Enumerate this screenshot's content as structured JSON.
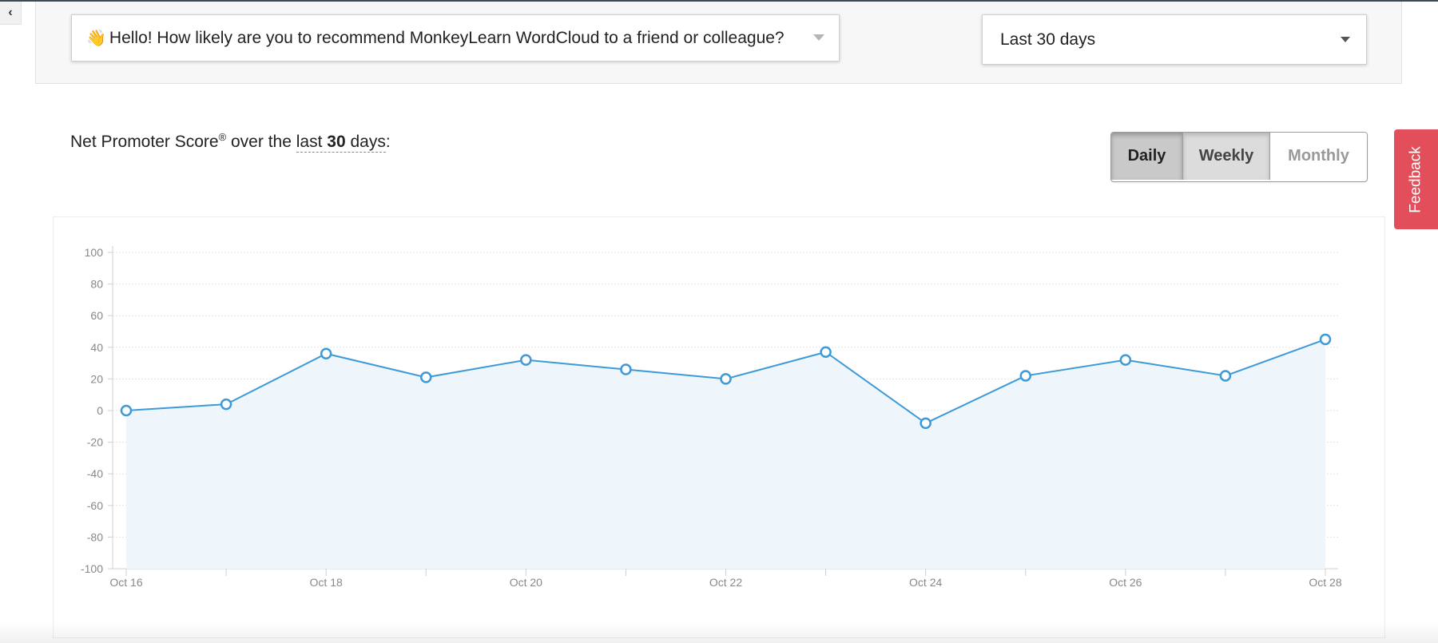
{
  "filters": {
    "question": {
      "emoji": "👋",
      "text": "Hello! How likely are you to recommend MonkeyLearn WordCloud to a friend or colleague?"
    },
    "date_range": "Last 30 days"
  },
  "heading": {
    "prefix": "Net Promoter Score",
    "sup": "®",
    "middle": " over the ",
    "period_word": "last",
    "period_number": "30",
    "period_unit": "days",
    "suffix": ":"
  },
  "period_toggle": {
    "options": [
      "Daily",
      "Weekly",
      "Monthly"
    ],
    "active": "Daily"
  },
  "feedback_label": "Feedback",
  "colors": {
    "accent": "#3d9ad8",
    "area_fill": "#eef6fc",
    "feedback": "#e24e59"
  },
  "chart_data": {
    "type": "area",
    "x": [
      "Oct 16",
      "Oct 17",
      "Oct 18",
      "Oct 19",
      "Oct 20",
      "Oct 21",
      "Oct 22",
      "Oct 23",
      "Oct 24",
      "Oct 25",
      "Oct 26",
      "Oct 27",
      "Oct 28"
    ],
    "x_tick_labels": [
      "Oct 16",
      "",
      "Oct 18",
      "",
      "Oct 20",
      "",
      "Oct 22",
      "",
      "Oct 24",
      "",
      "Oct 26",
      "",
      "Oct 28"
    ],
    "series": [
      {
        "values": [
          0,
          4,
          36,
          21,
          32,
          26,
          20,
          37,
          -8,
          22,
          32,
          22,
          45
        ]
      }
    ],
    "y_ticks": [
      100,
      80,
      60,
      40,
      20,
      0,
      -20,
      -40,
      -60,
      -80,
      -100
    ],
    "ylim": [
      -100,
      100
    ],
    "grid": true,
    "legend": "none"
  }
}
